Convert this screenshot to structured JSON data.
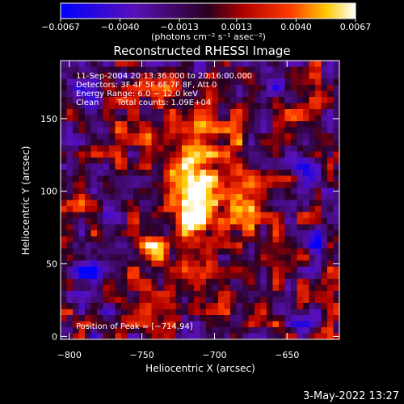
{
  "chart_data": {
    "type": "heatmap",
    "title": "Reconstructed RHESSI Image",
    "xlabel": "Heliocentric X (arcsec)",
    "ylabel": "Heliocentric Y (arcsec)",
    "xlim": [
      -806,
      -614
    ],
    "ylim": [
      -2,
      190
    ],
    "x_ticks": [
      -800,
      -750,
      -700,
      -650
    ],
    "x_tick_labels": [
      "−800",
      "−750",
      "−700",
      "−650"
    ],
    "y_ticks": [
      0,
      50,
      100,
      150
    ],
    "y_tick_labels": [
      "0",
      "50",
      "100",
      "150"
    ],
    "colorbar": {
      "min": -0.0067,
      "max": 0.0067,
      "ticks": [
        -0.0067,
        -0.004,
        -0.0013,
        0.0013,
        0.004,
        0.0067
      ],
      "tick_labels": [
        "−0.0067",
        "−0.0040",
        "−0.0013",
        "0.0013",
        "0.0040",
        "0.0067"
      ],
      "unit_label": "(photons cm⁻² s⁻¹ asec⁻²)",
      "colormap": "rhessi-blue-purple-red-yellow-white"
    },
    "peak": [
      -714,
      94
    ],
    "annotations": {
      "time_range": "11-Sep-2004 20:13:36.000 to 20:16:00.000",
      "detectors": "Detectors: 3F 4F 5F 6F 7F 8F, Att 0",
      "energy_range": "Energy Range: 6.0 − 12.0 keV",
      "method": "Clean",
      "total_counts": "Total counts: 1.09E+04",
      "peak_position": "Position of Peak = [−714,94]"
    },
    "grid": false
  },
  "footer": {
    "timestamp": "3-May-2022 13:27"
  }
}
